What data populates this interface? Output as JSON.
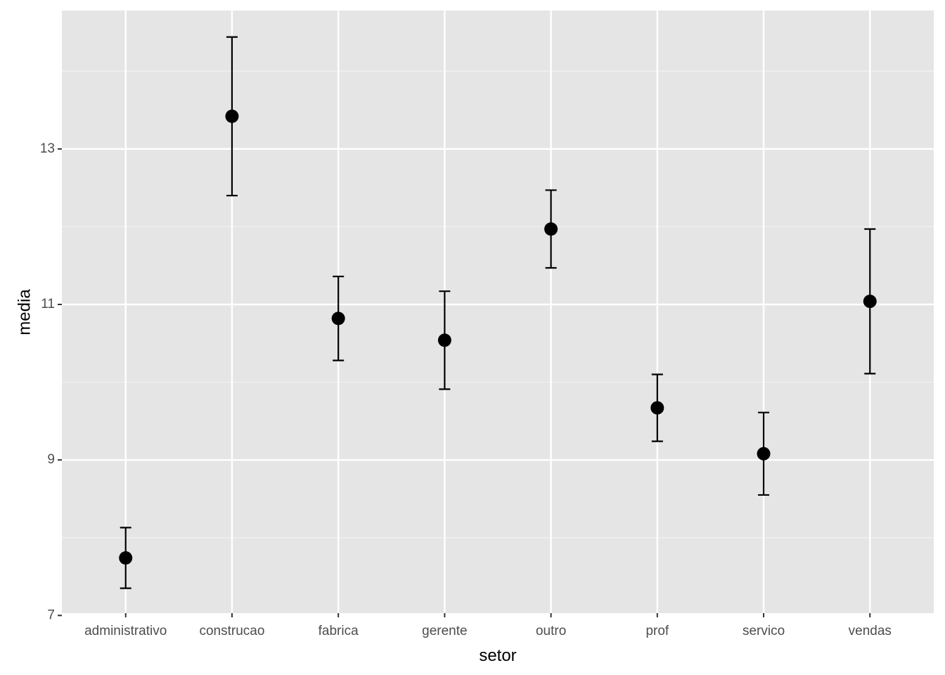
{
  "chart_data": {
    "type": "errorbar",
    "categories": [
      "administrativo",
      "construcao",
      "fabrica",
      "gerente",
      "outro",
      "prof",
      "servico",
      "vendas"
    ],
    "values": [
      7.74,
      13.42,
      10.82,
      10.54,
      11.97,
      9.67,
      9.08,
      11.04
    ],
    "errors": [
      0.39,
      1.02,
      0.54,
      0.63,
      0.5,
      0.43,
      0.53,
      0.93
    ],
    "color": "#000000",
    "xlabel": "setor",
    "ylabel": "media",
    "ylim": [
      7.03,
      14.78
    ],
    "yticks": [
      7,
      9,
      11,
      13
    ],
    "grid": true,
    "minor_grid": true
  }
}
